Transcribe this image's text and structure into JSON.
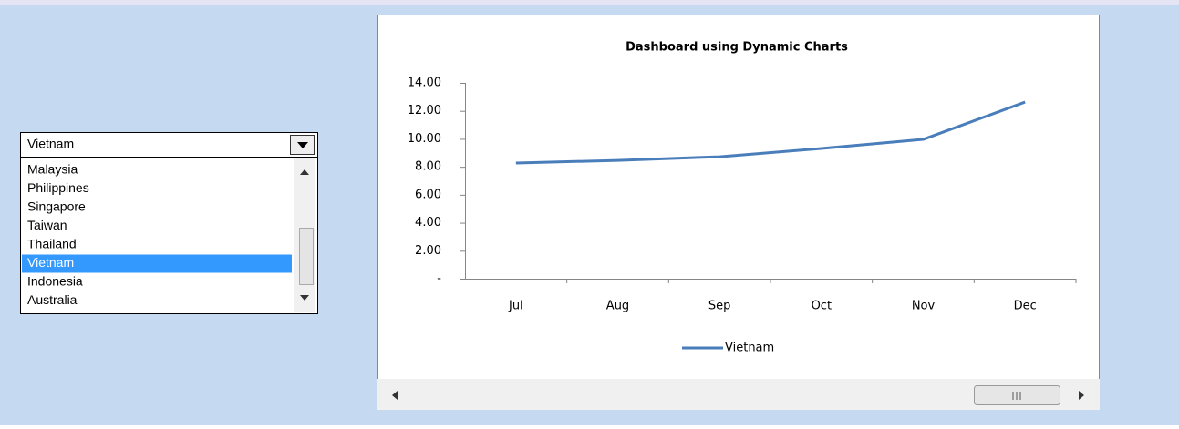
{
  "combo": {
    "selected": "Vietnam",
    "options": [
      "Malaysia",
      "Philippines",
      "Singapore",
      "Taiwan",
      "Thailand",
      "Vietnam",
      "Indonesia",
      "Australia"
    ],
    "highlighted": 5
  },
  "chart_data": {
    "type": "line",
    "title": "Dashboard using Dynamic Charts",
    "categories": [
      "Jul",
      "Aug",
      "Sep",
      "Oct",
      "Nov",
      "Dec"
    ],
    "series": [
      {
        "name": "Vietnam",
        "color": "#4a7ebb",
        "values": [
          8.27,
          8.46,
          8.72,
          9.31,
          9.96,
          12.63
        ]
      }
    ],
    "ylim": [
      0,
      14
    ],
    "yticks": [
      {
        "value": 0,
        "label": "-"
      },
      {
        "value": 2,
        "label": "2.00"
      },
      {
        "value": 4,
        "label": "4.00"
      },
      {
        "value": 6,
        "label": "6.00"
      },
      {
        "value": 8,
        "label": "8.00"
      },
      {
        "value": 10,
        "label": "10.00"
      },
      {
        "value": 12,
        "label": "12.00"
      },
      {
        "value": 14,
        "label": "14.00"
      }
    ],
    "grid": false,
    "legend": "bottom"
  }
}
